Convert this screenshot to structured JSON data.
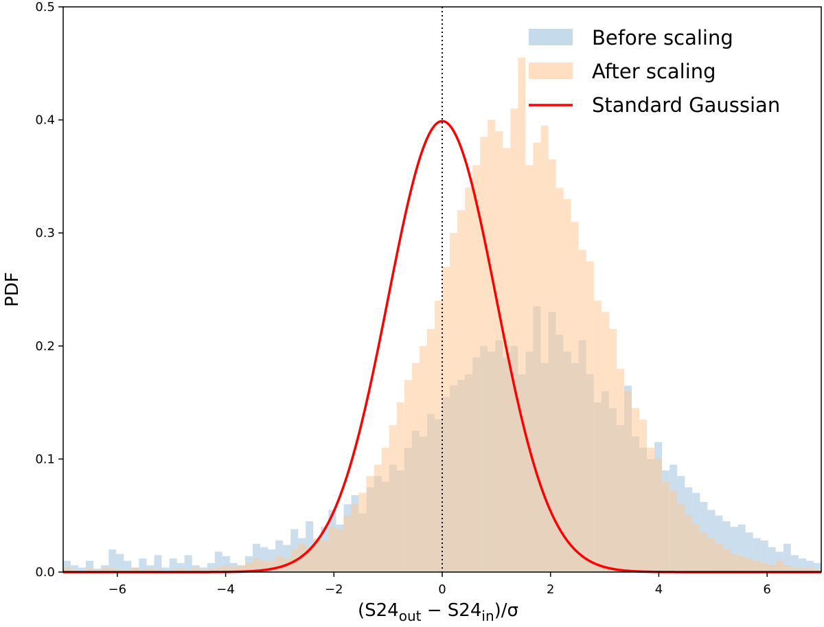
{
  "chart_data": {
    "type": "bar",
    "xlabel": {
      "main1": "(S24",
      "sub1": "out",
      "mid": " − S24",
      "sub2": "in",
      "tail": ")/σ"
    },
    "ylabel": "PDF",
    "xlim": [
      -7,
      7
    ],
    "ylim": [
      0,
      0.5
    ],
    "xticks": [
      -6,
      -4,
      -2,
      0,
      2,
      4,
      6
    ],
    "xtick_labels": [
      "−6",
      "−4",
      "−2",
      "0",
      "2",
      "4",
      "6"
    ],
    "yticks": [
      0.0,
      0.1,
      0.2,
      0.3,
      0.4,
      0.5
    ],
    "ytick_labels": [
      "0.0",
      "0.1",
      "0.2",
      "0.3",
      "0.4",
      "0.5"
    ],
    "legend_position": "top-right",
    "grid": false,
    "vline_x": 0,
    "bin_start": -7,
    "bin_width": 0.14,
    "series": [
      {
        "name": "Before scaling",
        "kind": "histogram",
        "color": "#9ec3e0",
        "opacity": 0.55,
        "values": [
          0.01,
          0.006,
          0.004,
          0.01,
          0.003,
          0.006,
          0.02,
          0.016,
          0.01,
          0.004,
          0.012,
          0.006,
          0.015,
          0.004,
          0.012,
          0.008,
          0.015,
          0.006,
          0.004,
          0.008,
          0.018,
          0.014,
          0.008,
          0.006,
          0.014,
          0.025,
          0.022,
          0.02,
          0.028,
          0.024,
          0.038,
          0.03,
          0.045,
          0.028,
          0.04,
          0.055,
          0.042,
          0.06,
          0.068,
          0.052,
          0.075,
          0.085,
          0.08,
          0.095,
          0.09,
          0.11,
          0.125,
          0.12,
          0.14,
          0.135,
          0.155,
          0.165,
          0.17,
          0.175,
          0.19,
          0.2,
          0.195,
          0.205,
          0.19,
          0.2,
          0.175,
          0.195,
          0.235,
          0.185,
          0.23,
          0.21,
          0.195,
          0.185,
          0.205,
          0.175,
          0.15,
          0.16,
          0.145,
          0.13,
          0.165,
          0.12,
          0.11,
          0.1,
          0.115,
          0.09,
          0.095,
          0.085,
          0.075,
          0.07,
          0.062,
          0.055,
          0.05,
          0.045,
          0.04,
          0.042,
          0.035,
          0.03,
          0.028,
          0.022,
          0.018,
          0.025,
          0.015,
          0.012,
          0.01,
          0.008
        ]
      },
      {
        "name": "After scaling",
        "kind": "histogram",
        "color": "#ffc898",
        "opacity": 0.55,
        "values": [
          0.004,
          0.002,
          0.001,
          0.003,
          0.002,
          0.004,
          0.003,
          0.002,
          0.002,
          0.004,
          0.002,
          0.003,
          0.002,
          0.001,
          0.002,
          0.003,
          0.002,
          0.004,
          0.002,
          0.003,
          0.004,
          0.006,
          0.005,
          0.006,
          0.008,
          0.012,
          0.01,
          0.01,
          0.014,
          0.012,
          0.02,
          0.025,
          0.022,
          0.03,
          0.028,
          0.04,
          0.038,
          0.05,
          0.06,
          0.07,
          0.085,
          0.095,
          0.11,
          0.13,
          0.15,
          0.17,
          0.185,
          0.2,
          0.215,
          0.24,
          0.27,
          0.3,
          0.32,
          0.34,
          0.36,
          0.385,
          0.4,
          0.39,
          0.375,
          0.41,
          0.455,
          0.36,
          0.38,
          0.395,
          0.365,
          0.34,
          0.33,
          0.31,
          0.285,
          0.275,
          0.24,
          0.23,
          0.215,
          0.18,
          0.16,
          0.145,
          0.135,
          0.11,
          0.1,
          0.08,
          0.072,
          0.06,
          0.05,
          0.042,
          0.035,
          0.03,
          0.025,
          0.02,
          0.016,
          0.014,
          0.012,
          0.01,
          0.008,
          0.006,
          0.01,
          0.006,
          0.004,
          0.003,
          0.004,
          0.002
        ]
      },
      {
        "name": "Standard Gaussian",
        "kind": "curve",
        "color": "#ff0000",
        "mean": 0,
        "std": 1
      }
    ]
  }
}
